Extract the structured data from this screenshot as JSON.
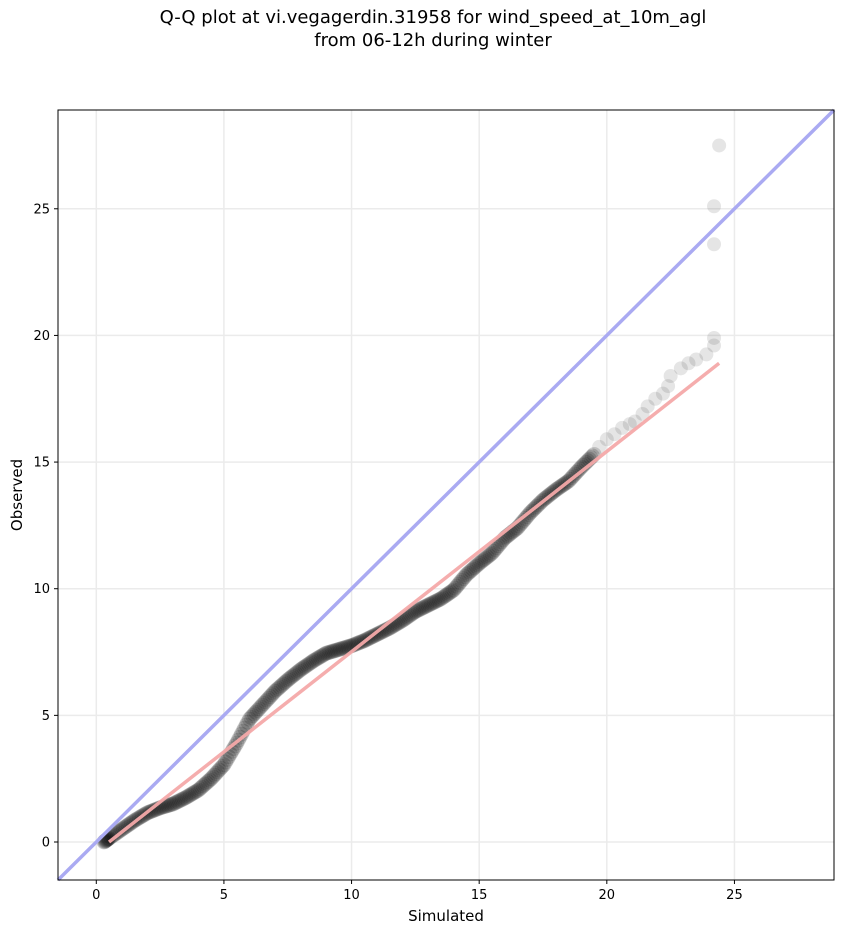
{
  "chart_data": {
    "type": "scatter",
    "title": [
      "Q-Q plot at vi.vegagerdin.31958 for wind_speed_at_10m_agl",
      "from 06-12h during winter"
    ],
    "xlabel": "Simulated",
    "ylabel": "Observed",
    "xlim": [
      -1.5,
      28.9
    ],
    "ylim": [
      -1.5,
      28.9
    ],
    "xticks": [
      0,
      5,
      10,
      15,
      20,
      25
    ],
    "yticks": [
      0,
      5,
      10,
      15,
      20,
      25
    ],
    "grid": true,
    "colors": {
      "points": "#000000",
      "identity_line": "#aaaaf2",
      "fit_line": "#f4a9a9",
      "grid": "#ebebeb"
    },
    "identity_line": {
      "x": [
        -1.5,
        28.9
      ],
      "y": [
        -1.5,
        28.9
      ]
    },
    "fit_line": {
      "x": [
        0.5,
        24.4
      ],
      "y": [
        0.0,
        18.9
      ]
    },
    "curve_points": {
      "x": [
        0.3,
        0.5,
        1.0,
        1.5,
        2.0,
        2.5,
        3.0,
        3.5,
        4.0,
        4.5,
        5.0,
        5.5,
        6.0,
        6.5,
        7.0,
        7.5,
        8.0,
        8.5,
        9.0,
        9.5,
        10.0,
        10.5,
        11.0,
        11.5,
        12.0,
        12.5,
        13.0,
        13.5,
        14.0,
        14.5,
        15.0,
        15.5,
        16.0,
        16.5,
        17.0,
        17.5,
        18.0,
        18.5,
        19.0,
        19.5
      ],
      "y": [
        0.0,
        0.15,
        0.5,
        0.85,
        1.15,
        1.35,
        1.5,
        1.75,
        2.05,
        2.5,
        3.05,
        3.9,
        4.85,
        5.4,
        5.95,
        6.4,
        6.8,
        7.15,
        7.45,
        7.6,
        7.75,
        7.95,
        8.2,
        8.45,
        8.75,
        9.1,
        9.35,
        9.6,
        9.95,
        10.55,
        11.0,
        11.4,
        12.0,
        12.4,
        13.0,
        13.5,
        13.9,
        14.25,
        14.8,
        15.3
      ]
    },
    "tail_points": [
      {
        "x": 19.7,
        "y": 15.6
      },
      {
        "x": 20.0,
        "y": 15.9
      },
      {
        "x": 20.3,
        "y": 16.1
      },
      {
        "x": 20.6,
        "y": 16.35
      },
      {
        "x": 20.9,
        "y": 16.5
      },
      {
        "x": 21.1,
        "y": 16.6
      },
      {
        "x": 21.4,
        "y": 16.9
      },
      {
        "x": 21.6,
        "y": 17.2
      },
      {
        "x": 21.9,
        "y": 17.5
      },
      {
        "x": 22.2,
        "y": 17.7
      },
      {
        "x": 22.4,
        "y": 18.0
      },
      {
        "x": 22.5,
        "y": 18.4
      },
      {
        "x": 22.9,
        "y": 18.7
      },
      {
        "x": 23.2,
        "y": 18.9
      },
      {
        "x": 23.5,
        "y": 19.05
      },
      {
        "x": 23.9,
        "y": 19.25
      },
      {
        "x": 24.2,
        "y": 19.6
      },
      {
        "x": 24.2,
        "y": 19.9
      },
      {
        "x": 24.2,
        "y": 23.6
      },
      {
        "x": 24.2,
        "y": 25.1
      },
      {
        "x": 24.4,
        "y": 27.5
      }
    ]
  }
}
